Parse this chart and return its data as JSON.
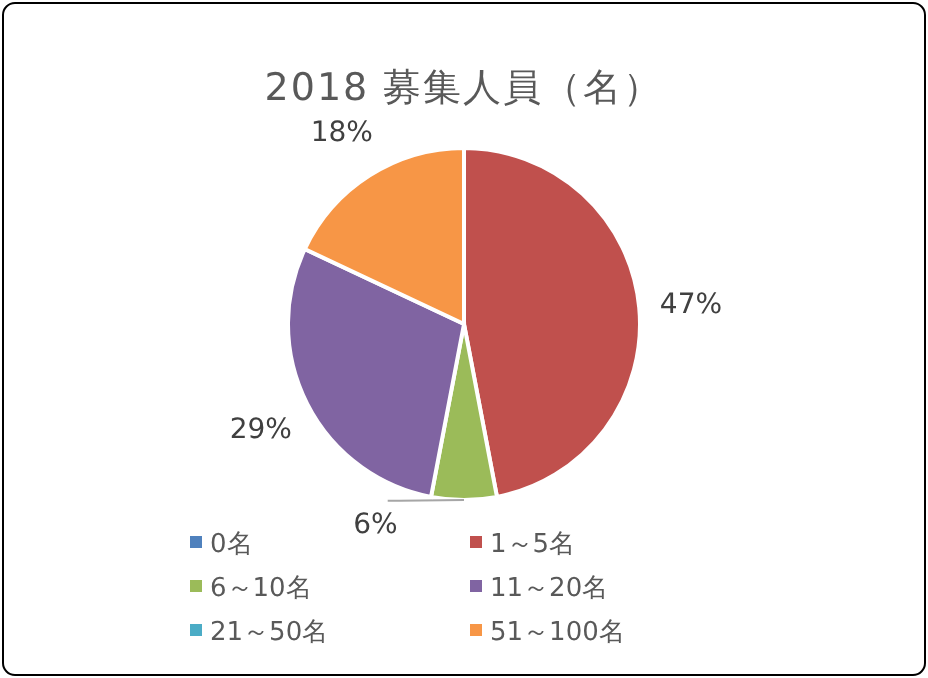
{
  "chart_data": {
    "type": "pie",
    "title": "2018  募集人員（名）",
    "categories": [
      "0名",
      "1～5名",
      "6～10名",
      "11～20名",
      "21～50名",
      "51～100名"
    ],
    "values": [
      0,
      47,
      6,
      29,
      0,
      18
    ],
    "colors": [
      "#4f81bd",
      "#c0504d",
      "#9bbb59",
      "#8064a2",
      "#4bacc6",
      "#f79646"
    ],
    "value_labels": [
      null,
      "47%",
      "6%",
      "29%",
      null,
      "18%"
    ],
    "legend": "bottom"
  }
}
